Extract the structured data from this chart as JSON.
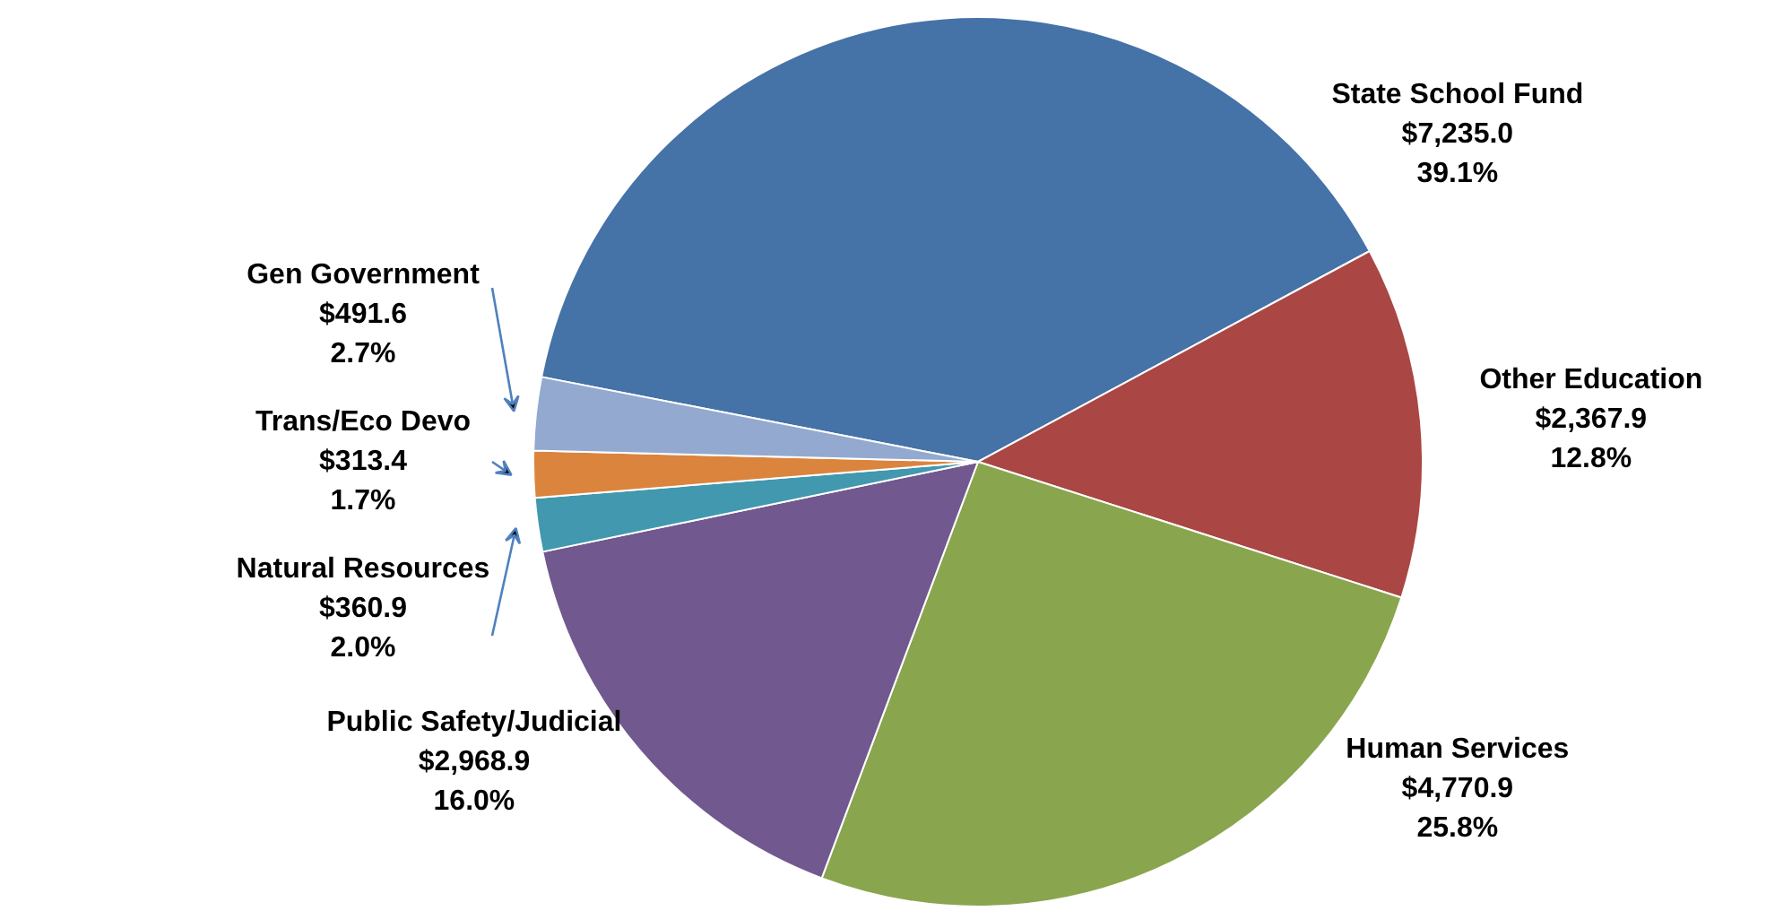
{
  "chart_data": {
    "type": "pie",
    "categories": [
      "State School Fund",
      "Other Education",
      "Human Services",
      "Public Safety/Judicial",
      "Natural Resources",
      "Trans/Eco Devo",
      "Gen Government"
    ],
    "values": [
      7235.0,
      2367.9,
      4770.9,
      2968.9,
      360.9,
      313.4,
      491.6
    ],
    "colors": [
      "#4572a7",
      "#aa4643",
      "#89a54e",
      "#71588f",
      "#4198af",
      "#db843d",
      "#93a9cf"
    ],
    "value_labels": [
      "$7,235.0\n39.1%",
      "$2,367.9\n12.8%",
      "$4,770.9\n25.8%",
      "$2,968.9\n16.0%",
      "$360.9\n2.0%",
      "$313.4\n1.7%",
      "$491.6\n2.7%"
    ]
  }
}
